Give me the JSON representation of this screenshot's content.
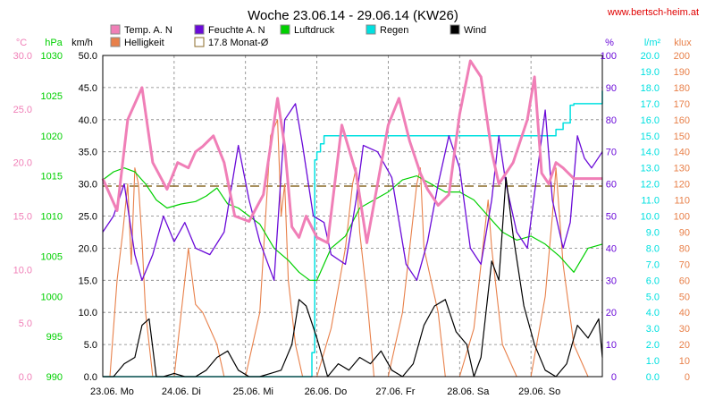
{
  "title": "Woche 23.06.14 - 29.06.14 (KW26)",
  "website": "www.bertsch-heim.at",
  "colors": {
    "temp": "#f07fb7",
    "humidity": "#6a0ad8",
    "pressure": "#00d000",
    "rain": "#00e0e0",
    "wind": "#000000",
    "brightness": "#e8804a",
    "monthly_avg": "#8b6b2a",
    "grid": "#808080",
    "website": "#e00000"
  },
  "legend": [
    {
      "label": "Temp. A. N",
      "key": "temp"
    },
    {
      "label": "Feuchte A. N",
      "key": "humidity"
    },
    {
      "label": "Luftdruck",
      "key": "pressure"
    },
    {
      "label": "Regen",
      "key": "rain"
    },
    {
      "label": "Wind",
      "key": "wind"
    },
    {
      "label": "Helligkeit",
      "key": "brightness"
    },
    {
      "label": "17.8 Monat-Ø",
      "key": "monthly_avg"
    }
  ],
  "axes": {
    "temp": {
      "unit": "°C",
      "ticks": [
        "30.0",
        "25.0",
        "20.0",
        "15.0",
        "10.0",
        "5.0",
        "0.0"
      ],
      "range": [
        0,
        30
      ]
    },
    "pressure": {
      "unit": "hPa",
      "ticks": [
        "1030",
        "1025",
        "1020",
        "1015",
        "1010",
        "1005",
        "1000",
        "995",
        "990"
      ],
      "range": [
        990,
        1030
      ]
    },
    "wind": {
      "unit": "km/h",
      "ticks": [
        "50.0",
        "45.0",
        "40.0",
        "35.0",
        "30.0",
        "25.0",
        "20.0",
        "15.0",
        "10.0",
        "5.0",
        "0.0"
      ],
      "range": [
        0,
        50
      ]
    },
    "humidity": {
      "unit": "%",
      "ticks": [
        "100",
        "90",
        "80",
        "70",
        "60",
        "50",
        "40",
        "30",
        "20",
        "10",
        "0"
      ],
      "range": [
        0,
        100
      ]
    },
    "rain": {
      "unit": "l/m²",
      "ticks": [
        "20.0",
        "19.0",
        "18.0",
        "17.0",
        "16.0",
        "15.0",
        "14.0",
        "13.0",
        "12.0",
        "11.0",
        "10.0",
        "9.0",
        "8.0",
        "7.0",
        "6.0",
        "5.0",
        "4.0",
        "3.0",
        "2.0",
        "1.0",
        "0.0"
      ],
      "range": [
        0,
        20
      ]
    },
    "brightness": {
      "unit": "klux",
      "ticks": [
        "200",
        "190",
        "180",
        "170",
        "160",
        "150",
        "140",
        "130",
        "120",
        "110",
        "100",
        "90",
        "80",
        "70",
        "60",
        "50",
        "40",
        "30",
        "20",
        "10",
        "0"
      ],
      "range": [
        0,
        200
      ]
    }
  },
  "x_labels": [
    "23.06.  Mo",
    "24.06.  Di",
    "25.06.  Mi",
    "26.06.  Do",
    "27.06.  Fr",
    "28.06.  Sa",
    "29.06.  So"
  ],
  "chart_data": {
    "type": "line",
    "title": "Woche 23.06.14 - 29.06.14 (KW26)",
    "x_range_days": [
      0,
      7
    ],
    "monthly_avg_temp": 17.8,
    "series": [
      {
        "name": "Temp. A. N",
        "axis": "temp",
        "x": [
          0,
          0.2,
          0.35,
          0.55,
          0.7,
          0.9,
          1.05,
          1.2,
          1.3,
          1.4,
          1.55,
          1.7,
          1.85,
          2.05,
          2.25,
          2.45,
          2.55,
          2.65,
          2.75,
          2.85,
          3.0,
          3.15,
          3.35,
          3.55,
          3.7,
          3.85,
          4.0,
          4.15,
          4.3,
          4.45,
          4.55,
          4.7,
          4.85,
          5.0,
          5.15,
          5.3,
          5.45,
          5.55,
          5.75,
          5.95,
          6.05,
          6.15,
          6.25,
          6.35,
          6.45,
          6.6,
          6.75,
          6.85,
          7.0
        ],
        "values": [
          18.5,
          15.5,
          24.0,
          27.0,
          20.0,
          17.5,
          20.0,
          19.5,
          21.0,
          21.5,
          22.5,
          20.0,
          15.0,
          14.5,
          17.0,
          26.0,
          21.5,
          14.0,
          13.0,
          15.0,
          13.0,
          12.5,
          23.5,
          19.0,
          12.5,
          18.0,
          23.5,
          26.0,
          22.0,
          19.0,
          17.5,
          16.0,
          17.0,
          24.5,
          29.5,
          28.0,
          21.0,
          18.0,
          20.0,
          24.0,
          28.0,
          19.0,
          18.0,
          20.0,
          19.5,
          18.5,
          18.5,
          18.5,
          18.5
        ]
      },
      {
        "name": "Feuchte A. N",
        "axis": "humidity",
        "x": [
          0,
          0.15,
          0.3,
          0.45,
          0.55,
          0.7,
          0.85,
          1.0,
          1.15,
          1.3,
          1.5,
          1.7,
          1.9,
          2.05,
          2.2,
          2.4,
          2.55,
          2.7,
          2.8,
          2.95,
          3.1,
          3.2,
          3.4,
          3.55,
          3.65,
          3.85,
          4.05,
          4.25,
          4.4,
          4.55,
          4.7,
          4.85,
          5.0,
          5.15,
          5.3,
          5.45,
          5.55,
          5.65,
          5.8,
          5.95,
          6.05,
          6.2,
          6.3,
          6.45,
          6.55,
          6.65,
          6.75,
          6.85,
          7.0
        ],
        "values": [
          45,
          50,
          60,
          38,
          30,
          38,
          50,
          42,
          48,
          40,
          38,
          45,
          72,
          55,
          42,
          30,
          80,
          85,
          72,
          50,
          48,
          38,
          35,
          55,
          72,
          70,
          62,
          35,
          30,
          42,
          60,
          75,
          65,
          40,
          35,
          55,
          75,
          60,
          45,
          40,
          57,
          83,
          55,
          40,
          48,
          75,
          68,
          65,
          70
        ]
      },
      {
        "name": "Luftdruck",
        "axis": "pressure",
        "x": [
          0,
          0.15,
          0.3,
          0.45,
          0.6,
          0.75,
          0.9,
          1.1,
          1.3,
          1.45,
          1.6,
          1.75,
          1.9,
          2.05,
          2.2,
          2.4,
          2.6,
          2.75,
          2.9,
          3.0,
          3.2,
          3.4,
          3.6,
          3.8,
          4.0,
          4.2,
          4.4,
          4.6,
          4.8,
          5.0,
          5.2,
          5.4,
          5.6,
          5.8,
          6.0,
          6.2,
          6.4,
          6.6,
          6.8,
          7.0
        ],
        "values": [
          1014.5,
          1015.5,
          1016,
          1015.5,
          1014,
          1012,
          1011,
          1011.5,
          1011.8,
          1012.5,
          1013.5,
          1011.5,
          1011,
          1010,
          1009,
          1006,
          1004.5,
          1003,
          1002,
          1002,
          1006,
          1007.5,
          1011,
          1012,
          1013,
          1014.5,
          1015,
          1014,
          1013,
          1013,
          1012,
          1010,
          1008,
          1007,
          1007.5,
          1006.5,
          1005,
          1003,
          1006,
          1006.5
        ]
      },
      {
        "name": "Regen",
        "axis": "rain",
        "x": [
          0,
          2.9,
          2.93,
          2.97,
          3.0,
          3.05,
          3.1,
          3.2,
          3.4,
          3.6,
          3.8,
          4.0,
          4.5,
          5.0,
          5.5,
          6.0,
          6.3,
          6.35,
          6.45,
          6.55,
          6.6,
          7.0
        ],
        "values": [
          0,
          0,
          1.5,
          13.5,
          14.0,
          14.5,
          15.0,
          15.0,
          15.0,
          15.0,
          15.0,
          15.0,
          15.0,
          15.0,
          15.0,
          15.0,
          15.0,
          15.4,
          15.8,
          16.9,
          17.0,
          17.8
        ]
      },
      {
        "name": "Wind",
        "axis": "wind",
        "x": [
          0,
          0.15,
          0.3,
          0.45,
          0.55,
          0.65,
          0.75,
          0.85,
          1.0,
          1.15,
          1.3,
          1.45,
          1.6,
          1.75,
          1.9,
          2.05,
          2.2,
          2.35,
          2.5,
          2.65,
          2.75,
          2.85,
          3.0,
          3.15,
          3.3,
          3.45,
          3.6,
          3.75,
          3.9,
          4.05,
          4.2,
          4.35,
          4.5,
          4.65,
          4.8,
          4.95,
          5.1,
          5.2,
          5.3,
          5.45,
          5.55,
          5.65,
          5.75,
          5.9,
          6.05,
          6.2,
          6.35,
          6.5,
          6.65,
          6.8,
          6.95,
          7.0
        ],
        "values": [
          0,
          0,
          2,
          3,
          8,
          9,
          0,
          0,
          0.5,
          0,
          0,
          1,
          3,
          4,
          1,
          0,
          0,
          0.5,
          1,
          5,
          12,
          11,
          6,
          0,
          2,
          1,
          3,
          2,
          4,
          1,
          0,
          2,
          8,
          11,
          12,
          7,
          5,
          0,
          3,
          18,
          15,
          31,
          22,
          11,
          5,
          1,
          0,
          2,
          8,
          6,
          9,
          3
        ]
      },
      {
        "name": "Helligkeit",
        "axis": "brightness",
        "x": [
          0,
          0.1,
          0.2,
          0.28,
          0.35,
          0.4,
          0.45,
          0.5,
          0.55,
          0.6,
          0.7,
          0.8,
          0.9,
          1.0,
          1.1,
          1.2,
          1.3,
          1.4,
          1.5,
          1.6,
          1.7,
          1.8,
          2.0,
          2.2,
          2.35,
          2.45,
          2.5,
          2.55,
          2.6,
          2.7,
          2.8,
          3.0,
          3.2,
          3.4,
          3.5,
          3.55,
          3.6,
          3.7,
          3.8,
          4.0,
          4.2,
          4.4,
          4.45,
          4.5,
          4.6,
          4.7,
          4.8,
          5.0,
          5.2,
          5.35,
          5.4,
          5.45,
          5.5,
          5.6,
          5.8,
          6.0,
          6.2,
          6.3,
          6.35,
          6.45,
          6.6,
          6.8,
          7.0
        ],
        "values": [
          0,
          0,
          60,
          90,
          120,
          70,
          130,
          120,
          85,
          40,
          0,
          0,
          0,
          0,
          40,
          80,
          45,
          40,
          30,
          20,
          0,
          0,
          0,
          40,
          150,
          160,
          100,
          120,
          60,
          20,
          0,
          0,
          30,
          80,
          120,
          130,
          90,
          50,
          0,
          0,
          40,
          120,
          130,
          80,
          60,
          40,
          0,
          0,
          30,
          90,
          110,
          80,
          60,
          20,
          0,
          0,
          50,
          100,
          130,
          70,
          20,
          0,
          0
        ]
      }
    ]
  }
}
